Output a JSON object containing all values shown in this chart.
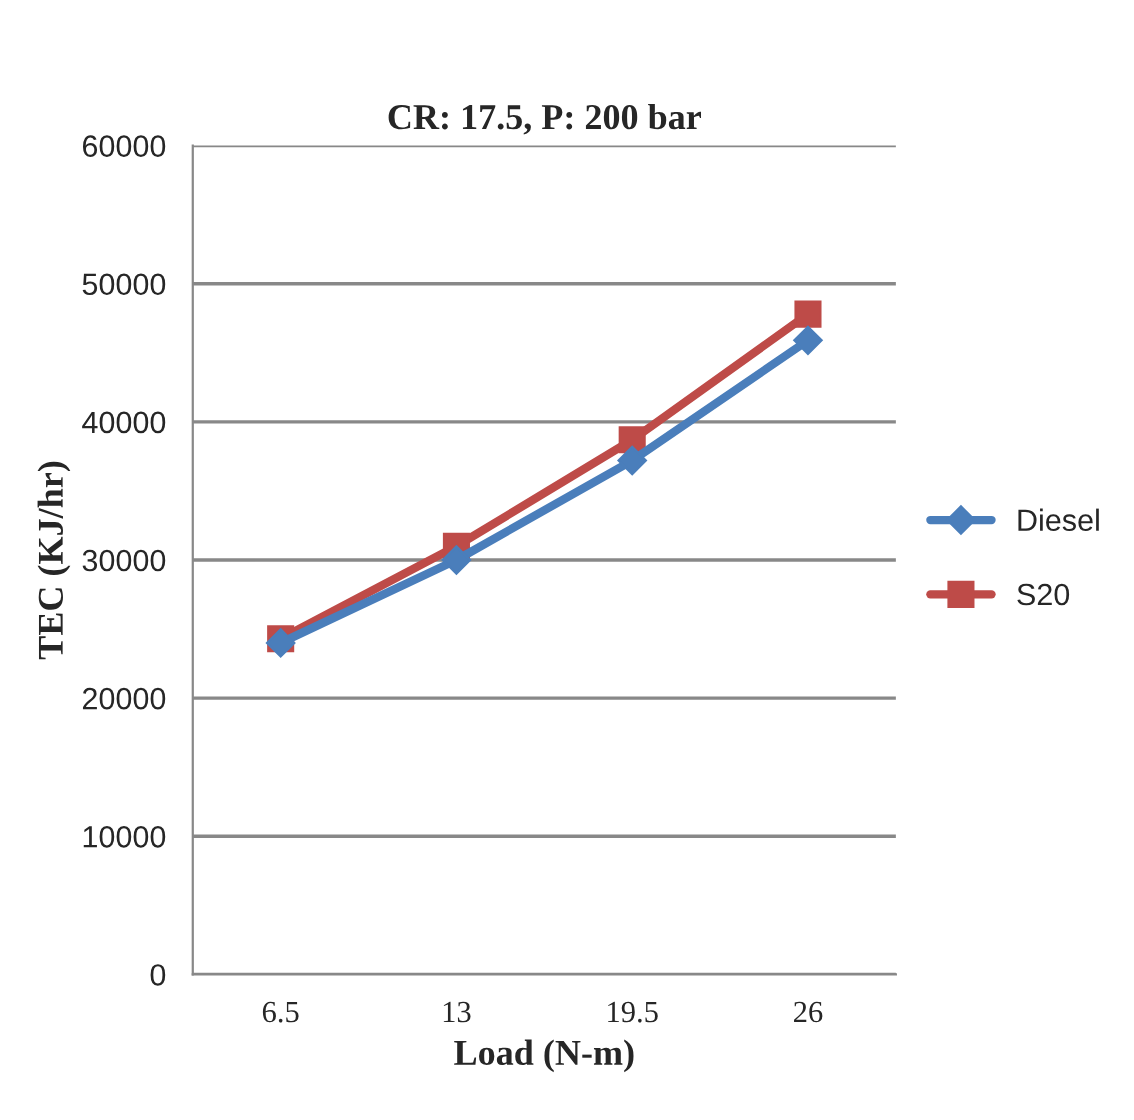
{
  "chart_data": {
    "type": "line",
    "title": "CR: 17.5, P: 200 bar",
    "xlabel": "Load (N-m)",
    "ylabel": "TEC (KJ/hr)",
    "categories": [
      "6.5",
      "13",
      "19.5",
      "26"
    ],
    "series": [
      {
        "name": "Diesel",
        "color": "#4a7ebb",
        "marker": "diamond",
        "values": [
          24000,
          30000,
          37200,
          45900
        ]
      },
      {
        "name": "S20",
        "color": "#be4b48",
        "marker": "square",
        "values": [
          24300,
          31000,
          38700,
          47800
        ]
      }
    ],
    "ylim": [
      0,
      60000
    ],
    "yticks": [
      0,
      10000,
      20000,
      30000,
      40000,
      50000,
      60000
    ],
    "grid": "y",
    "legend": "right"
  }
}
